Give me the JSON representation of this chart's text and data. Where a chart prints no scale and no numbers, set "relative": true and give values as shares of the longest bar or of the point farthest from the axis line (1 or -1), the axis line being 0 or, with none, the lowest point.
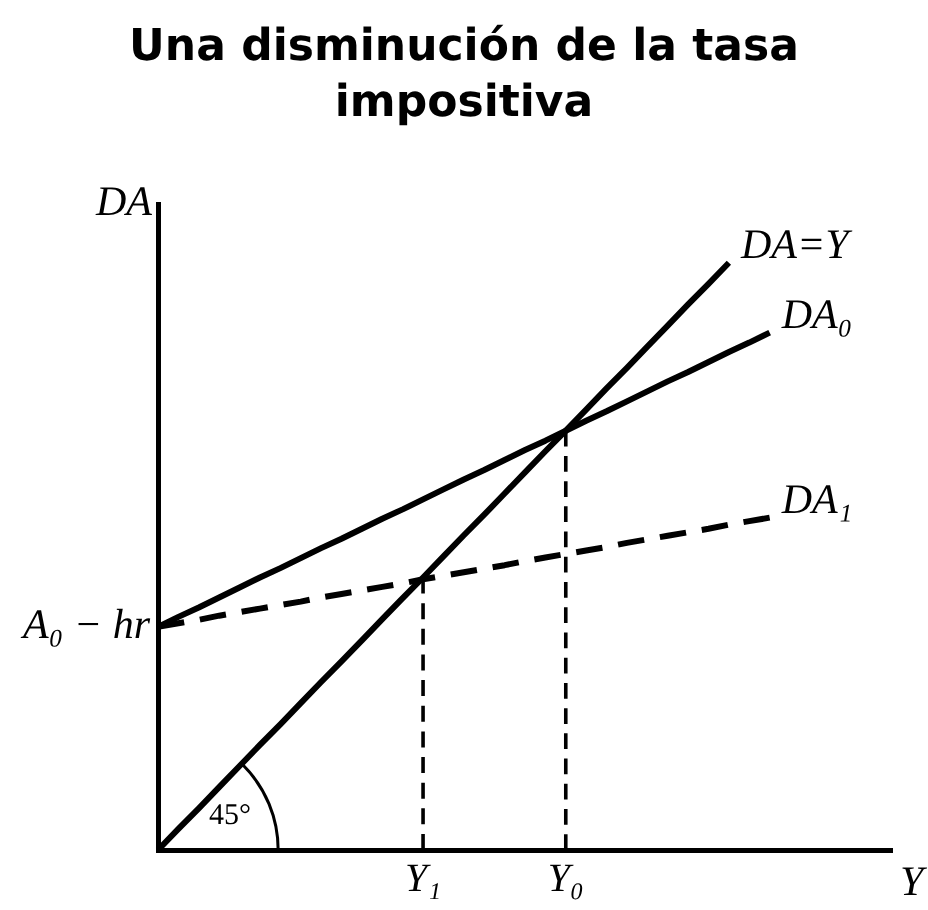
{
  "chart_data": {
    "type": "line",
    "title": "Una disminución de la tasa impositiva",
    "xlabel": "Y",
    "ylabel": "DA",
    "relative": true,
    "categories": [
      null,
      null,
      null,
      null,
      null,
      null,
      null,
      null,
      null,
      null,
      null,
      null,
      null,
      "Y₁",
      null,
      null,
      null,
      null,
      null,
      null,
      "Y₀",
      null,
      null,
      null,
      null,
      null,
      null,
      null,
      null,
      null,
      null,
      null,
      null,
      null,
      null,
      null,
      null
    ],
    "series": [
      {
        "name": "DA=Y",
        "color": "#000000",
        "values": [
          0,
          0.036,
          0.071,
          0.107,
          0.143,
          0.179,
          0.214,
          0.25,
          0.286,
          0.321,
          0.357,
          0.393,
          0.429,
          0.464,
          0.5,
          0.536,
          0.571,
          0.607,
          0.643,
          0.679,
          0.714,
          0.75,
          0.786,
          0.821,
          0.857,
          0.893,
          0.929,
          0.964,
          1,
          null,
          null,
          null,
          null,
          null,
          null,
          null,
          null
        ]
      },
      {
        "name": "DA₀",
        "color": "#000000",
        "values": [
          0.38,
          0.397,
          0.413,
          0.43,
          0.447,
          0.464,
          0.48,
          0.497,
          0.514,
          0.53,
          0.547,
          0.564,
          0.58,
          0.597,
          0.614,
          0.631,
          0.647,
          0.664,
          0.681,
          0.697,
          0.714,
          0.731,
          0.747,
          0.764,
          0.781,
          0.798,
          0.814,
          0.831,
          0.848,
          0.864,
          0.881,
          null,
          null,
          null,
          null,
          null,
          null
        ]
      },
      {
        "name": "DA₁",
        "color": "#000000",
        "line_style": "dashed",
        "values": [
          0.38,
          0.386,
          0.392,
          0.399,
          0.405,
          0.411,
          0.417,
          0.423,
          0.43,
          0.436,
          0.442,
          0.448,
          0.454,
          0.461,
          0.467,
          0.473,
          0.479,
          0.485,
          0.492,
          0.498,
          0.504,
          0.51,
          0.516,
          0.523,
          0.529,
          0.535,
          0.541,
          0.547,
          0.554,
          0.56,
          0.566,
          null,
          null,
          null,
          null,
          null,
          null
        ]
      }
    ],
    "ref_lines": [
      {
        "axis": "x",
        "value": "Y₁",
        "color": "#000000",
        "line_style": "dashed"
      },
      {
        "axis": "x",
        "value": "Y₀",
        "color": "#000000",
        "line_style": "dashed"
      }
    ],
    "annotations": [
      "45°",
      "A₀ − hr"
    ],
    "line_style": "solid",
    "marker": "none",
    "legend": false
  }
}
